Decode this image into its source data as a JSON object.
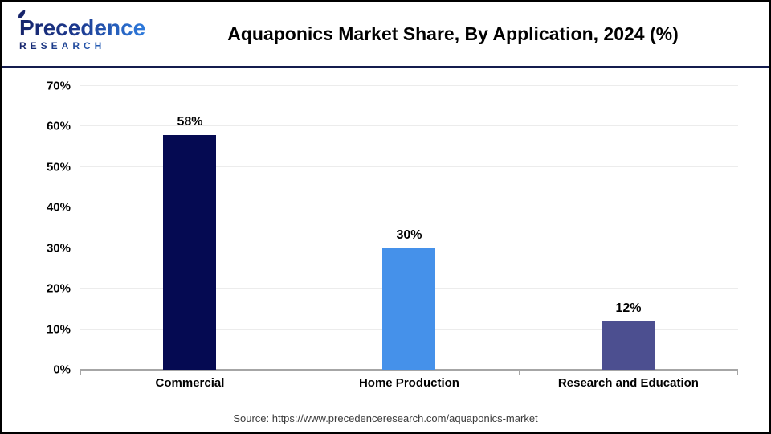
{
  "header": {
    "logo_line1": "Precedence",
    "logo_line2": "RESEARCH",
    "title": "Aquaponics Market Share, By Application, 2024 (%)"
  },
  "chart_data": {
    "type": "bar",
    "title": "Aquaponics Market Share, By Application, 2024 (%)",
    "categories": [
      "Commercial",
      "Home Production",
      "Research and Education"
    ],
    "values": [
      58,
      30,
      12
    ],
    "value_labels": [
      "58%",
      "30%",
      "12%"
    ],
    "colors": [
      "#050a52",
      "#4591ea",
      "#4c4f90"
    ],
    "xlabel": "",
    "ylabel": "",
    "ylim": [
      0,
      70
    ],
    "yticks": [
      0,
      10,
      20,
      30,
      40,
      50,
      60,
      70
    ],
    "ytick_suffix": "%",
    "grid": "horizontal",
    "legend": "none"
  },
  "footer": {
    "source": "Source: https://www.precedenceresearch.com/aquaponics-market"
  },
  "colors": {
    "header_rule": "#141c4e",
    "outer_border": "#000000",
    "axis": "#a6a6a6",
    "gridline": "#ececec",
    "logo_dark": "#16246b",
    "logo_blue": "#2e7de0",
    "title_text": "#000000",
    "source_text": "#3c3c3c"
  }
}
